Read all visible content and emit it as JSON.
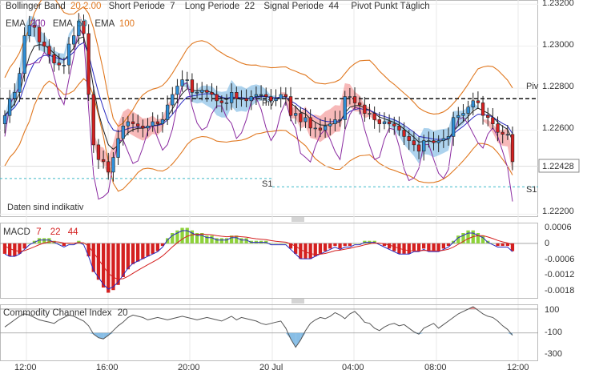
{
  "header": {
    "bb_label": "Bollinger Band",
    "bb_params": "20 2.00",
    "short_label": "Short Periode",
    "short_val": "7",
    "long_label": "Long Periode",
    "long_val": "22",
    "signal_label": "Signal Periode",
    "signal_val": "44",
    "pivot_label": "Pivot Punkt Täglich"
  },
  "ema_legend": {
    "ema200_label": "EMA",
    "ema200_val": "200",
    "ema50_label": "EMA",
    "ema50_val": "50",
    "ema100_label": "EMA",
    "ema100_val": "100"
  },
  "notice": "Daten sind indikativ",
  "price_axis": {
    "ticks": [
      "1.23200",
      "1.23000",
      "1.22800",
      "1.22600",
      "1.22200"
    ],
    "current": "1.22428"
  },
  "pivot_labels": {
    "piv_right": "Piv",
    "piv_mid": "Piv",
    "s1_mid": "S1",
    "s1_right": "S1"
  },
  "macd": {
    "label": "MACD",
    "p1": "7",
    "p2": "22",
    "p3": "44",
    "ticks": [
      "0.0006",
      "0",
      "-0.0006",
      "-0.0012",
      "-0.0018"
    ]
  },
  "cci": {
    "label": "Commodity Channel Index",
    "period": "20",
    "ticks": [
      "100",
      "-100",
      "-300"
    ]
  },
  "time_axis": {
    "ticks": [
      "12:00",
      "16:00",
      "20:00",
      "20 Jul",
      "04:00",
      "08:00",
      "12:00"
    ]
  },
  "colors": {
    "up": "#2f8fd8",
    "down": "#d42020",
    "bb": "#e07820",
    "macd_pos": "#8ed23a",
    "macd_neg": "#d42020",
    "cloud_blue": "#6aaee0",
    "cloud_red": "#f08080",
    "purple": "#8a2aa0",
    "ema50": "#2a2ac0",
    "cci_fill_blue": "#6aaee0",
    "cci_fill_red": "#f08080",
    "s1_line": "#3cb8c8"
  },
  "chart_data": [
    {
      "type": "candlestick",
      "title": "",
      "y_axis_ticks": [
        1.232,
        1.23,
        1.228,
        1.226,
        1.222
      ],
      "ylim": [
        1.2219,
        1.2322
      ],
      "current_price": 1.22428,
      "pivot": 1.2275,
      "s1": [
        1.2237,
        1.2233
      ],
      "x_ticks": [
        "12:00",
        "16:00",
        "20:00",
        "20 Jul",
        "04:00",
        "08:00",
        "12:00"
      ],
      "candles_close": [
        1.2267,
        1.2275,
        1.2278,
        1.2287,
        1.2305,
        1.231,
        1.2309,
        1.2302,
        1.23,
        1.2296,
        1.2292,
        1.2291,
        1.2291,
        1.2301,
        1.2305,
        1.2312,
        1.2306,
        1.2277,
        1.2253,
        1.2246,
        1.2245,
        1.224,
        1.2247,
        1.2256,
        1.2262,
        1.2264,
        1.2263,
        1.2262,
        1.2261,
        1.2262,
        1.2264,
        1.2263,
        1.2265,
        1.2272,
        1.2277,
        1.2281,
        1.2284,
        1.2284,
        1.2278,
        1.2278,
        1.2279,
        1.2278,
        1.2277,
        1.2274,
        1.2273,
        1.2273,
        1.2278,
        1.2275,
        1.2275,
        1.2274,
        1.2276,
        1.2277,
        1.2277,
        1.2276,
        1.2274,
        1.2275,
        1.2277,
        1.2276,
        1.2267,
        1.2268,
        1.2264,
        1.2266,
        1.2261,
        1.2261,
        1.226,
        1.2262,
        1.2263,
        1.2265,
        1.2265,
        1.2276,
        1.2276,
        1.2273,
        1.2272,
        1.2268,
        1.2268,
        1.2265,
        1.2263,
        1.2264,
        1.2263,
        1.2262,
        1.226,
        1.2257,
        1.2255,
        1.2253,
        1.225,
        1.2255,
        1.2255,
        1.2254,
        1.2255,
        1.2256,
        1.2257,
        1.2266,
        1.2267,
        1.2268,
        1.2271,
        1.2274,
        1.2273,
        1.2267,
        1.2266,
        1.2263,
        1.2259,
        1.2258,
        1.2258,
        1.2245
      ],
      "series": [
        {
          "name": "EMA",
          "label_value": "200",
          "color": "#333333"
        },
        {
          "name": "EMA",
          "label_value": "50",
          "color": "#2a2ac0"
        },
        {
          "name": "EMA",
          "label_value": "100",
          "color": "#e07820"
        }
      ]
    },
    {
      "type": "bar",
      "title": "MACD 7 22 44",
      "ylim": [
        -0.0021,
        0.0008
      ],
      "y_axis_ticks": [
        0.0006,
        0,
        -0.0006,
        -0.0012,
        -0.0018
      ],
      "histogram": [
        -0.0004,
        -0.0005,
        -0.0005,
        -0.0004,
        -0.0002,
        0.0,
        0.0001,
        0.0002,
        0.0002,
        0.0002,
        0.0001,
        0.0,
        -0.0001,
        0.0,
        0.0,
        0.0001,
        0.0,
        -0.0005,
        -0.0011,
        -0.0014,
        -0.0017,
        -0.0019,
        -0.0018,
        -0.0016,
        -0.0013,
        -0.001,
        -0.0008,
        -0.0007,
        -0.0006,
        -0.0005,
        -0.0004,
        -0.0003,
        -0.0001,
        0.0002,
        0.0004,
        0.0005,
        0.0006,
        0.0006,
        0.0005,
        0.0004,
        0.0004,
        0.0003,
        0.0003,
        0.0002,
        0.0002,
        0.0002,
        0.0003,
        0.0003,
        0.0002,
        0.0002,
        0.0001,
        0.0001,
        0.0001,
        0.0001,
        0.0,
        0.0,
        0.0,
        0.0,
        -0.0002,
        -0.0004,
        -0.0006,
        -0.0006,
        -0.0006,
        -0.0005,
        -0.0004,
        -0.0003,
        -0.0002,
        -0.0001,
        -0.0002,
        -0.0001,
        -0.0001,
        0.0,
        0.0,
        0.0001,
        0.0001,
        0.0001,
        0.0,
        -0.0001,
        -0.0002,
        -0.0003,
        -0.0004,
        -0.0004,
        -0.0004,
        -0.0003,
        -0.0003,
        -0.0002,
        -0.0003,
        -0.0003,
        -0.0003,
        -0.0002,
        -0.0001,
        0.0001,
        0.0003,
        0.0004,
        0.0005,
        0.0005,
        0.0004,
        0.0003,
        0.0001,
        0.0,
        -0.0001,
        -0.0001,
        -0.0001,
        -0.0003
      ]
    },
    {
      "type": "line",
      "title": "Commodity Channel Index 20",
      "ylim": [
        -330,
        140
      ],
      "y_axis_ticks": [
        100,
        -100,
        -300
      ],
      "values": [
        -50,
        -20,
        10,
        40,
        60,
        50,
        30,
        10,
        0,
        -10,
        -20,
        10,
        30,
        50,
        40,
        20,
        0,
        -40,
        -110,
        -140,
        -150,
        -120,
        -80,
        -40,
        -10,
        30,
        50,
        40,
        30,
        10,
        20,
        30,
        20,
        10,
        20,
        30,
        40,
        30,
        20,
        10,
        20,
        30,
        20,
        10,
        0,
        20,
        40,
        10,
        30,
        20,
        10,
        0,
        -20,
        -30,
        -20,
        -10,
        0,
        -60,
        -150,
        -220,
        -160,
        -80,
        -20,
        10,
        30,
        20,
        40,
        70,
        50,
        20,
        60,
        80,
        40,
        -10,
        -20,
        -60,
        -80,
        -50,
        -30,
        -20,
        -40,
        -30,
        -60,
        -90,
        -110,
        -60,
        -40,
        -20,
        -60,
        -30,
        0,
        30,
        60,
        80,
        100,
        120,
        90,
        60,
        40,
        30,
        0,
        -40,
        -70,
        -120
      ]
    }
  ]
}
